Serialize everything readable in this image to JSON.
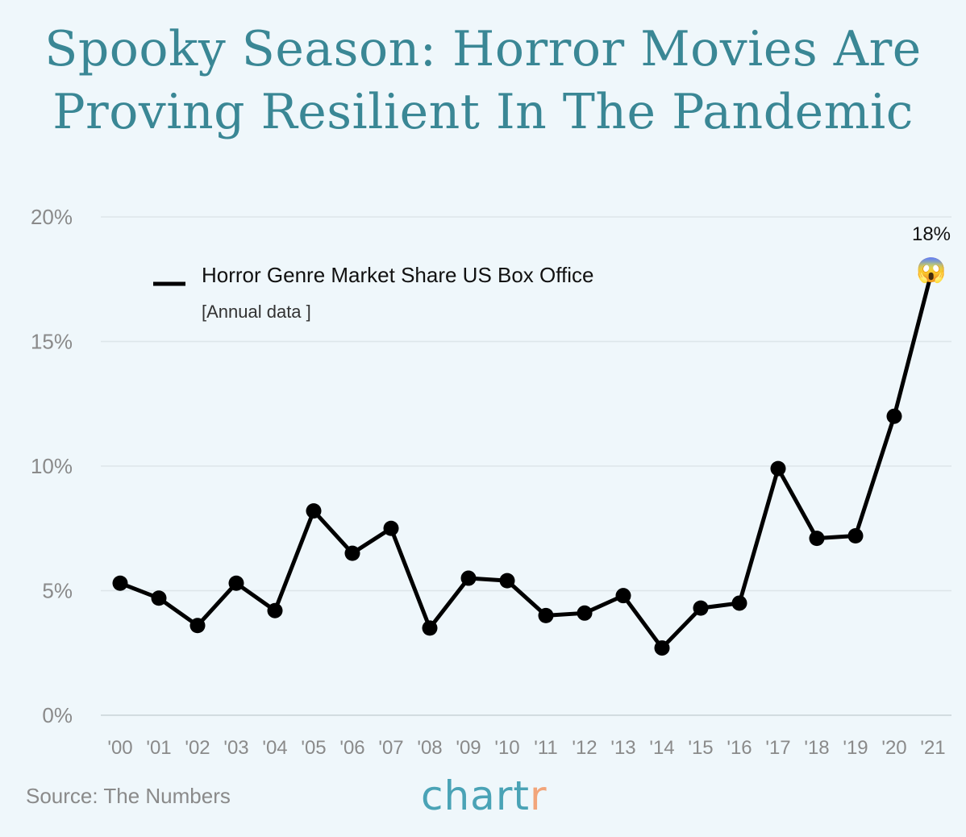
{
  "title": "Spooky Season: Horror Movies Are Proving Resilient In The Pandemic",
  "source": "Source: The Numbers",
  "logo": {
    "main": "chart",
    "accent": "r"
  },
  "colors": {
    "title": "#3a8795",
    "line": "#000000",
    "grid": "#dde6ea",
    "logo_main": "#4aa3b6",
    "logo_accent": "#f2a57a",
    "background": "#eff7fb"
  },
  "chart_data": {
    "type": "line",
    "title": "Spooky Season: Horror Movies Are Proving Resilient In The Pandemic",
    "xlabel": "",
    "ylabel": "",
    "ylim": [
      0,
      20
    ],
    "yticks": [
      "0%",
      "5%",
      "10%",
      "15%",
      "20%"
    ],
    "ytick_values": [
      0,
      5,
      10,
      15,
      20
    ],
    "grid": "horizontal",
    "legend_position": "top-left",
    "categories": [
      "'00",
      "'01",
      "'02",
      "'03",
      "'04",
      "'05",
      "'06",
      "'07",
      "'08",
      "'09",
      "'10",
      "'11",
      "'12",
      "'13",
      "'14",
      "'15",
      "'16",
      "'17",
      "'18",
      "'19",
      "'20",
      "'21"
    ],
    "series": [
      {
        "name": "Horror Genre Market Share US Box Office",
        "subtitle": "[Annual data ]",
        "values": [
          5.3,
          4.7,
          3.6,
          5.3,
          4.2,
          8.2,
          6.5,
          7.5,
          3.5,
          5.5,
          5.4,
          4.0,
          4.1,
          4.8,
          2.7,
          4.3,
          4.5,
          9.9,
          7.1,
          7.2,
          12.0,
          18.0
        ]
      }
    ],
    "annotations": [
      {
        "category": "'21",
        "text": "18%",
        "icon": "screaming-face-emoji"
      }
    ]
  }
}
